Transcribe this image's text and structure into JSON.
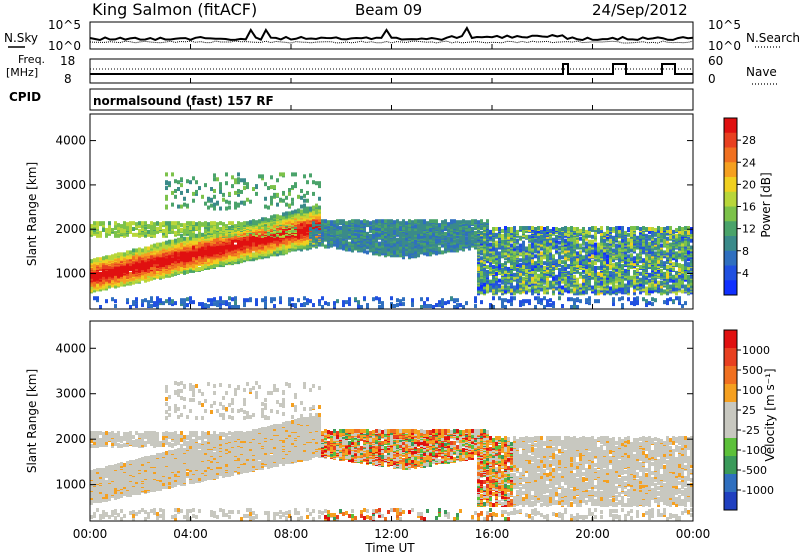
{
  "header": {
    "station": "King Salmon (fitACF)",
    "beam": "Beam 09",
    "date": "24/Sep/2012"
  },
  "strip_labels": {
    "nsky": "N.Sky",
    "nsky_tick_top": "10^5",
    "nsky_tick_bottom": "10^0",
    "nsearch": "N.Search",
    "nsearch_tick_top": "10^5",
    "nsearch_tick_bottom": "10^0",
    "freq": "Freq.",
    "freq_unit": "[MHz]",
    "freq_tick_top": "18",
    "freq_tick_bottom": "8",
    "nave": "Nave",
    "nave_tick_top": "60",
    "nave_tick_bottom": "0",
    "cpid": "CPID",
    "cpid_value": "normalsound (fast) 157 RF"
  },
  "chart_data": [
    {
      "type": "heatmap",
      "name_id": "power",
      "ylabel": "Slant Range [km]",
      "ylim": [
        200,
        4600
      ],
      "yticks": [
        "1000",
        "2000",
        "3000",
        "4000"
      ],
      "colorbar_label": "Power [dB]",
      "colorbar_ticks": [
        "4",
        "8",
        "12",
        "16",
        "20",
        "24",
        "28"
      ],
      "colorbar_colors": [
        "#1030ff",
        "#2050e0",
        "#2f6fbf",
        "#3a8a8a",
        "#4aa36a",
        "#7cc24a",
        "#b8d63a",
        "#f0d020",
        "#f5a020",
        "#f07020",
        "#e84020",
        "#e01010"
      ]
    },
    {
      "type": "heatmap",
      "name_id": "velocity",
      "ylabel": "Slant Range [km]",
      "ylim": [
        200,
        4600
      ],
      "yticks": [
        "1000",
        "2000",
        "3000",
        "4000"
      ],
      "colorbar_label": "Velocity [m s⁻¹]",
      "colorbar_ticks": [
        "1000",
        "500",
        "100",
        "25",
        "-25",
        "-100",
        "-500",
        "-1000"
      ],
      "colorbar_colors": [
        "#2040c0",
        "#2f6fbf",
        "#3a9a5a",
        "#5cc03a",
        "#c8c8c0",
        "#c8c8c0",
        "#f5a020",
        "#f07020",
        "#e84020",
        "#e01010"
      ]
    }
  ],
  "xaxis": {
    "label": "Time UT",
    "ticks": [
      "00:00",
      "04:00",
      "08:00",
      "12:00",
      "16:00",
      "20:00",
      "00:00"
    ]
  },
  "colors": {
    "ground_grey": "#c8c8c0",
    "frame": "#000000"
  }
}
